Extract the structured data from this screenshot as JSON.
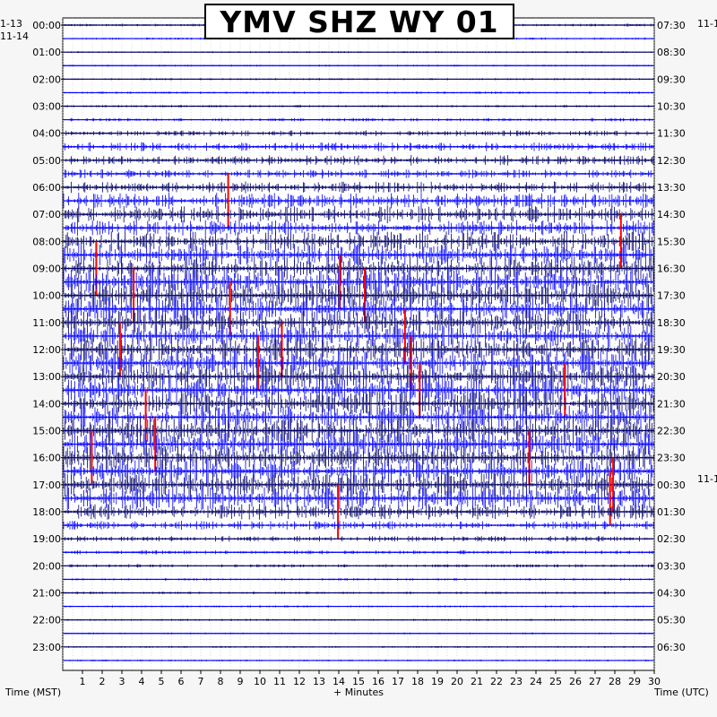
{
  "title": "YMV SHZ WY 01",
  "left_date_top": "1-13",
  "left_date_bottom": "11-14",
  "right_date_top": "11-1",
  "right_date_mid": "11-1",
  "xlabel_left": "Time (MST)",
  "xlabel_center": "+ Minutes",
  "xlabel_right": "Time (UTC)",
  "colors": {
    "trace_dark": "#000066",
    "trace_blue": "#0000ff",
    "clip": "#ff0000",
    "grid": "#8888aa"
  },
  "chart_data": {
    "type": "helicorder",
    "title": "YMV SHZ WY 01",
    "xlabel": "+ Minutes",
    "xlim": [
      0,
      30
    ],
    "x_ticks": [
      1,
      2,
      3,
      4,
      5,
      6,
      7,
      8,
      9,
      10,
      11,
      12,
      13,
      14,
      15,
      16,
      17,
      18,
      19,
      20,
      21,
      22,
      23,
      24,
      25,
      26,
      27,
      28,
      29,
      30
    ],
    "left_axis_label": "Time (MST)",
    "right_axis_label": "Time (UTC)",
    "left_hours": [
      "00:00",
      "01:00",
      "02:00",
      "03:00",
      "04:00",
      "05:00",
      "06:00",
      "07:00",
      "08:00",
      "09:00",
      "10:00",
      "11:00",
      "12:00",
      "13:00",
      "14:00",
      "15:00",
      "16:00",
      "17:00",
      "18:00",
      "19:00",
      "20:00",
      "21:00",
      "22:00",
      "23:00"
    ],
    "right_hours": [
      "07:30",
      "08:30",
      "09:30",
      "10:30",
      "11:30",
      "12:30",
      "13:30",
      "14:30",
      "15:30",
      "16:30",
      "17:30",
      "18:30",
      "19:30",
      "20:30",
      "21:30",
      "22:30",
      "23:30",
      "00:30",
      "01:30",
      "02:30",
      "03:30",
      "04:30",
      "05:30",
      "06:30"
    ],
    "rows_per_hour": 2,
    "row_activity": [
      0.08,
      0.05,
      0.04,
      0.04,
      0.05,
      0.06,
      0.06,
      0.1,
      0.18,
      0.3,
      0.35,
      0.3,
      0.4,
      0.55,
      0.6,
      0.55,
      0.7,
      0.85,
      0.9,
      0.95,
      1.0,
      0.95,
      0.9,
      0.85,
      0.85,
      0.95,
      1.0,
      1.0,
      0.9,
      0.95,
      0.95,
      1.0,
      0.95,
      0.9,
      1.0,
      0.85,
      0.55,
      0.3,
      0.18,
      0.12,
      0.1,
      0.06,
      0.06,
      0.05,
      0.05,
      0.04,
      0.04,
      0.04
    ],
    "grid": true
  }
}
